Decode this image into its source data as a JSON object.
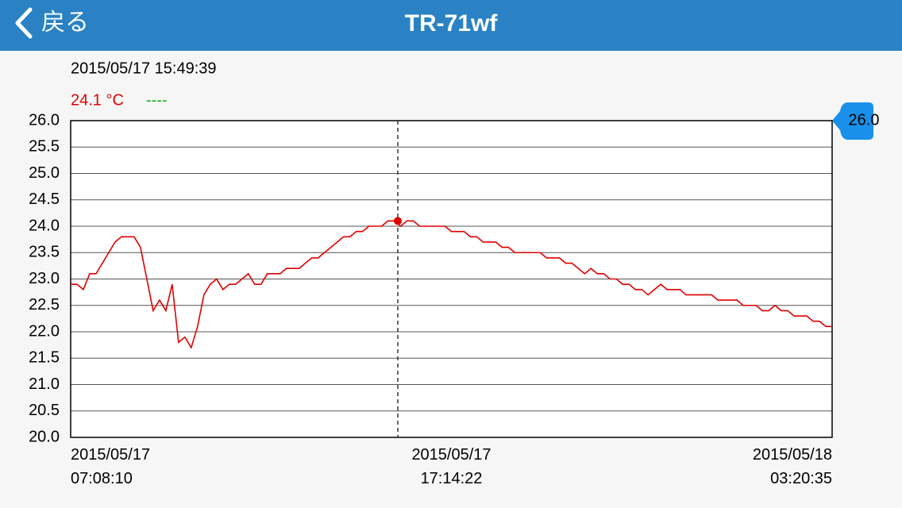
{
  "header": {
    "back": "戻る",
    "title": "TR-71wf"
  },
  "chart_data": {
    "type": "line",
    "readout": {
      "time": "2015/05/17 15:49:39",
      "value": 24.1,
      "value_label": "24.1 °C",
      "second": "----"
    },
    "badge": "26.0",
    "color": "#e00000",
    "values": [
      22.9,
      22.9,
      22.8,
      23.1,
      23.1,
      23.3,
      23.5,
      23.7,
      23.8,
      23.8,
      23.8,
      23.6,
      23.0,
      22.4,
      22.6,
      22.4,
      22.9,
      21.8,
      21.9,
      21.7,
      22.1,
      22.7,
      22.9,
      23.0,
      22.8,
      22.9,
      22.9,
      23.0,
      23.1,
      22.9,
      22.9,
      23.1,
      23.1,
      23.1,
      23.2,
      23.2,
      23.2,
      23.3,
      23.4,
      23.4,
      23.5,
      23.6,
      23.7,
      23.8,
      23.8,
      23.9,
      23.9,
      24.0,
      24.0,
      24.0,
      24.1,
      24.1,
      24.0,
      24.1,
      24.1,
      24.0,
      24.0,
      24.0,
      24.0,
      24.0,
      23.9,
      23.9,
      23.9,
      23.8,
      23.8,
      23.7,
      23.7,
      23.7,
      23.6,
      23.6,
      23.5,
      23.5,
      23.5,
      23.5,
      23.5,
      23.4,
      23.4,
      23.4,
      23.3,
      23.3,
      23.2,
      23.1,
      23.2,
      23.1,
      23.1,
      23.0,
      23.0,
      22.9,
      22.9,
      22.8,
      22.8,
      22.7,
      22.8,
      22.9,
      22.8,
      22.8,
      22.8,
      22.7,
      22.7,
      22.7,
      22.7,
      22.7,
      22.6,
      22.6,
      22.6,
      22.6,
      22.5,
      22.5,
      22.5,
      22.4,
      22.4,
      22.5,
      22.4,
      22.4,
      22.3,
      22.3,
      22.3,
      22.2,
      22.2,
      22.1,
      22.1
    ],
    "xlim": [
      0,
      120
    ],
    "xticks": [
      {
        "value": 0,
        "label": "2015/05/17 07:08:10"
      },
      {
        "value": 60,
        "label": "2015/05/17 17:14:22"
      },
      {
        "value": 120,
        "label": "2015/05/18 03:20:35"
      }
    ],
    "ylim": [
      20,
      26
    ],
    "yticks": [
      {
        "value": 20,
        "label": "20.0"
      },
      {
        "value": 20.5,
        "label": "20.5"
      },
      {
        "value": 21,
        "label": "21.0"
      },
      {
        "value": 21.5,
        "label": "21.5"
      },
      {
        "value": 22,
        "label": "22.0"
      },
      {
        "value": 22.5,
        "label": "22.5"
      },
      {
        "value": 23,
        "label": "23.0"
      },
      {
        "value": 23.5,
        "label": "23.5"
      },
      {
        "value": 24,
        "label": "24.0"
      },
      {
        "value": 24.5,
        "label": "24.5"
      },
      {
        "value": 25,
        "label": "25.0"
      },
      {
        "value": 25.5,
        "label": "25.5"
      },
      {
        "value": 26,
        "label": "26.0"
      }
    ],
    "grid": true
  }
}
